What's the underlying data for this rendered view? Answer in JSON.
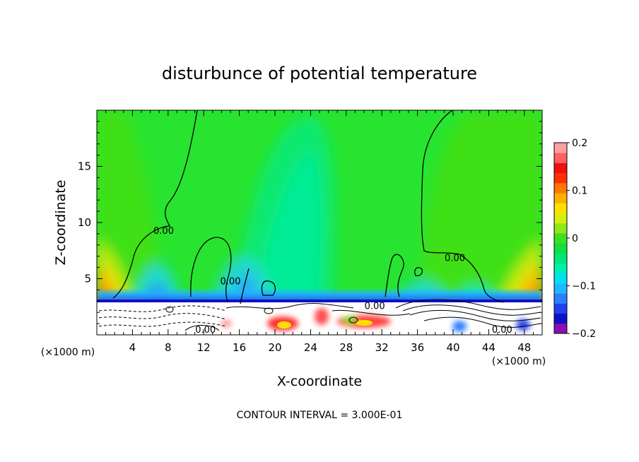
{
  "chart_data": {
    "type": "heatmap",
    "title": "disturbunce of potential temperature",
    "xlabel": "X-coordinate",
    "ylabel": "Z-coordinate",
    "x_unit_left": "(×1000 m)",
    "x_unit_right": "(×1000 m)",
    "x_ticks": [
      {
        "value": 4,
        "label": "4"
      },
      {
        "value": 8,
        "label": "8"
      },
      {
        "value": 12,
        "label": "12"
      },
      {
        "value": 16,
        "label": "16"
      },
      {
        "value": 20,
        "label": "20"
      },
      {
        "value": 24,
        "label": "24"
      },
      {
        "value": 28,
        "label": "28"
      },
      {
        "value": 32,
        "label": "32"
      },
      {
        "value": 36,
        "label": "36"
      },
      {
        "value": 40,
        "label": "40"
      },
      {
        "value": 44,
        "label": "44"
      },
      {
        "value": 48,
        "label": "48"
      }
    ],
    "y_ticks": [
      {
        "value": 5,
        "label": "5"
      },
      {
        "value": 10,
        "label": "10"
      },
      {
        "value": 15,
        "label": "15"
      }
    ],
    "xlim": [
      0,
      50
    ],
    "ylim": [
      0,
      20
    ],
    "colorbar": {
      "range": [
        -0.2,
        0.2
      ],
      "colors": [
        "#8a0fb0",
        "#1010c8",
        "#2040f0",
        "#2a80ff",
        "#20b8ff",
        "#00e0f0",
        "#00f0b0",
        "#00e87a",
        "#10e040",
        "#40e020",
        "#90e818",
        "#d8ee10",
        "#ffe000",
        "#ffb000",
        "#ff7800",
        "#ff3000",
        "#f01010",
        "#ff6060",
        "#ffa0a0"
      ],
      "ticks": [
        {
          "value": 0.2,
          "label": "0.2"
        },
        {
          "value": 0.1,
          "label": "0.1"
        },
        {
          "value": 0,
          "label": "0"
        },
        {
          "value": -0.1,
          "label": "−0.1"
        },
        {
          "value": -0.2,
          "label": "−0.2"
        }
      ]
    },
    "contour_labels": [
      {
        "x": 7.5,
        "z": 9.3,
        "text": "0.00"
      },
      {
        "x": 15.0,
        "z": 4.8,
        "text": "0.00"
      },
      {
        "x": 40.2,
        "z": 6.9,
        "text": "0.00"
      },
      {
        "x": 31.2,
        "z": 2.6,
        "text": "0.00"
      },
      {
        "x": 12.2,
        "z": 0.5,
        "text": "0.00"
      },
      {
        "x": 45.5,
        "z": 0.5,
        "text": "0.00"
      }
    ],
    "footer": "CONTOUR INTERVAL = 3.000E-01"
  }
}
